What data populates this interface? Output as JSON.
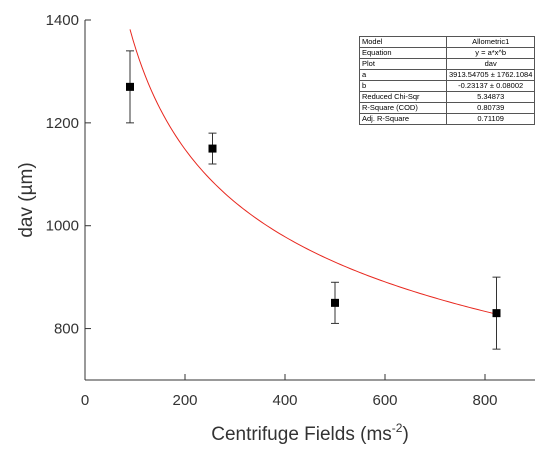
{
  "chart_data": {
    "type": "scatter",
    "xlabel": "Centrifuge Fields (ms",
    "xlabel_sup": "-2",
    "xlabel_end": ")",
    "ylabel": "dav (µm)",
    "xlim": [
      0,
      900
    ],
    "ylim": [
      700,
      1400
    ],
    "xticks": [
      0,
      200,
      400,
      600,
      800
    ],
    "yticks": [
      800,
      1000,
      1200,
      1400
    ],
    "points": [
      {
        "x": 90,
        "y": 1270,
        "yerr": 70
      },
      {
        "x": 255,
        "y": 1150,
        "yerr": 30
      },
      {
        "x": 500,
        "y": 850,
        "yerr": 40
      },
      {
        "x": 823,
        "y": 830,
        "yerr": 70
      }
    ],
    "fit": {
      "a": 3913.54705,
      "b": -0.23137,
      "x_range": [
        90,
        823
      ],
      "color": "#e8281f"
    },
    "marker_color": "#000000",
    "fit_table": [
      {
        "label": "Model",
        "value": "Allometric1"
      },
      {
        "label": "Equation",
        "value": "y = a*x^b"
      },
      {
        "label": "Plot",
        "value": "dav"
      },
      {
        "label": "a",
        "value": "3913.54705 ± 1762.1084"
      },
      {
        "label": "b",
        "value": "-0.23137 ± 0.08002"
      },
      {
        "label": "Reduced Chi-Sqr",
        "value": "5.34873"
      },
      {
        "label": "R-Square (COD)",
        "value": "0.80739"
      },
      {
        "label": "Adj. R-Square",
        "value": "0.71109"
      }
    ]
  }
}
